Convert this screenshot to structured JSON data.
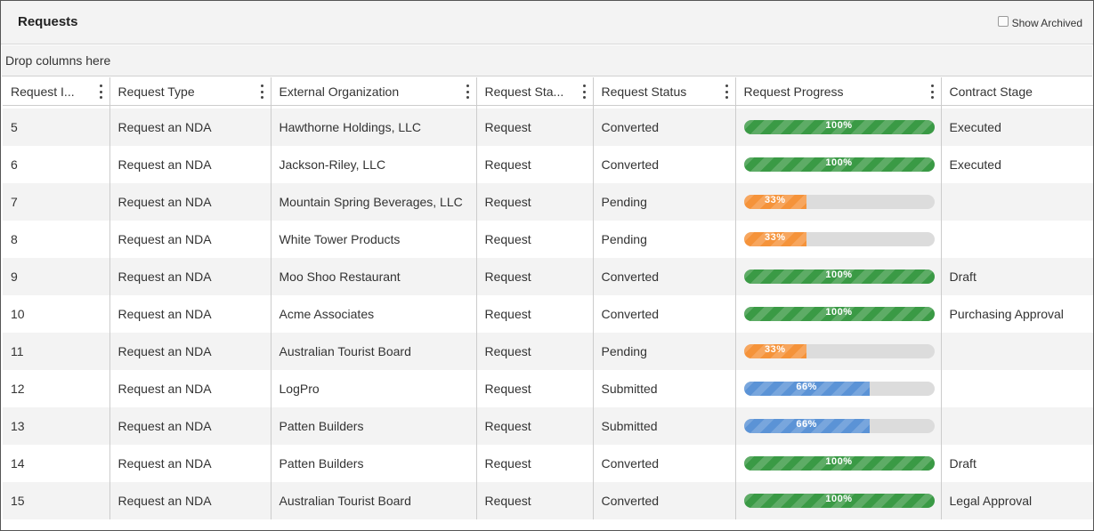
{
  "panel": {
    "title": "Requests",
    "show_archived_label": "Show Archived",
    "show_archived_checked": false
  },
  "grid": {
    "drop_zone_text": "Drop columns here",
    "columns": [
      "Request I...",
      "Request Type",
      "External Organization",
      "Request Sta...",
      "Request Status",
      "Request Progress",
      "Contract Stage"
    ],
    "rows": [
      {
        "id": "5",
        "type": "Request an NDA",
        "org": "Hawthorne Holdings, LLC",
        "stage": "Request",
        "status": "Converted",
        "progress": 100,
        "progress_label": "100%",
        "progress_color": "#3a9a45",
        "contract_stage": "Executed"
      },
      {
        "id": "6",
        "type": "Request an NDA",
        "org": "Jackson-Riley, LLC",
        "stage": "Request",
        "status": "Converted",
        "progress": 100,
        "progress_label": "100%",
        "progress_color": "#3a9a45",
        "contract_stage": "Executed"
      },
      {
        "id": "7",
        "type": "Request an NDA",
        "org": "Mountain Spring Beverages, LLC",
        "stage": "Request",
        "status": "Pending",
        "progress": 33,
        "progress_label": "33%",
        "progress_color": "#f5933a",
        "contract_stage": ""
      },
      {
        "id": "8",
        "type": "Request an NDA",
        "org": "White Tower Products",
        "stage": "Request",
        "status": "Pending",
        "progress": 33,
        "progress_label": "33%",
        "progress_color": "#f5933a",
        "contract_stage": ""
      },
      {
        "id": "9",
        "type": "Request an NDA",
        "org": "Moo Shoo Restaurant",
        "stage": "Request",
        "status": "Converted",
        "progress": 100,
        "progress_label": "100%",
        "progress_color": "#3a9a45",
        "contract_stage": "Draft"
      },
      {
        "id": "10",
        "type": "Request an NDA",
        "org": "Acme Associates",
        "stage": "Request",
        "status": "Converted",
        "progress": 100,
        "progress_label": "100%",
        "progress_color": "#3a9a45",
        "contract_stage": "Purchasing Approval"
      },
      {
        "id": "11",
        "type": "Request an NDA",
        "org": "Australian Tourist Board",
        "stage": "Request",
        "status": "Pending",
        "progress": 33,
        "progress_label": "33%",
        "progress_color": "#f5933a",
        "contract_stage": ""
      },
      {
        "id": "12",
        "type": "Request an NDA",
        "org": "LogPro",
        "stage": "Request",
        "status": "Submitted",
        "progress": 66,
        "progress_label": "66%",
        "progress_color": "#5b93d6",
        "contract_stage": ""
      },
      {
        "id": "13",
        "type": "Request an NDA",
        "org": "Patten Builders",
        "stage": "Request",
        "status": "Submitted",
        "progress": 66,
        "progress_label": "66%",
        "progress_color": "#5b93d6",
        "contract_stage": ""
      },
      {
        "id": "14",
        "type": "Request an NDA",
        "org": "Patten Builders",
        "stage": "Request",
        "status": "Converted",
        "progress": 100,
        "progress_label": "100%",
        "progress_color": "#3a9a45",
        "contract_stage": "Draft"
      },
      {
        "id": "15",
        "type": "Request an NDA",
        "org": "Australian Tourist Board",
        "stage": "Request",
        "status": "Converted",
        "progress": 100,
        "progress_label": "100%",
        "progress_color": "#3a9a45",
        "contract_stage": "Legal Approval"
      }
    ]
  }
}
